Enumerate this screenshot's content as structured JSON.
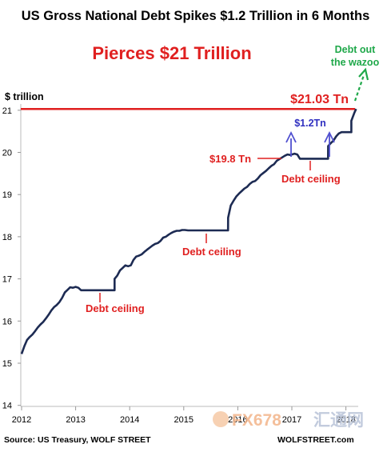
{
  "title": "US Gross National Debt Spikes $1.2 Trillion in 6 Months",
  "subtitle": "Pierces $21 Trillion",
  "source": "Source: US Treasury, WOLF STREET",
  "site": "WOLFSTREET.com",
  "watermark": {
    "logo_text": "FX678",
    "cn_text": "汇通网"
  },
  "colors": {
    "line": "#1d2b53",
    "reference_line": "#e02020",
    "annotation_red": "#e02020",
    "annotation_blue": "#3030c0",
    "annotation_green": "#1fa84a",
    "watermark": "#f3b58a"
  },
  "annotations": {
    "peak_value": "$21.03 Tn",
    "spike": "$1.2Tn",
    "pre_spike_value": "$19.8 Tn",
    "debt_ceiling": "Debt ceiling",
    "wazoo_line1": "Debt out",
    "wazoo_line2": "the wazoo"
  },
  "chart_data": {
    "type": "line",
    "title": "US Gross National Debt Spikes $1.2 Trillion in 6 Months",
    "subtitle": "Pierces $21 Trillion",
    "ylabel": "$ trillion",
    "xlabel": "",
    "xlim": [
      2012.0,
      2018.2
    ],
    "ylim": [
      14,
      21.2
    ],
    "x_ticks": [
      "2012",
      "2013",
      "2014",
      "2015",
      "2016",
      "2017",
      "2018"
    ],
    "y_ticks": [
      "14",
      "15",
      "16",
      "17",
      "18",
      "19",
      "20",
      "21"
    ],
    "grid": false,
    "reference_line": {
      "y": 21.03,
      "label": "$21.03 Tn"
    },
    "series": [
      {
        "x": [
          2012.0,
          2012.05,
          2012.1,
          2012.15,
          2012.2,
          2012.25,
          2012.3,
          2012.35,
          2012.4,
          2012.45,
          2012.5,
          2012.55,
          2012.6,
          2012.65,
          2012.7,
          2012.75,
          2012.8,
          2012.85,
          2012.9,
          2012.95,
          2013.0,
          2013.05,
          2013.1,
          2013.15,
          2013.2,
          2013.25,
          2013.3,
          2013.35,
          2013.4,
          2013.72,
          2013.721,
          2013.77,
          2013.82,
          2013.87,
          2013.92,
          2013.97,
          2014.02,
          2014.07,
          2014.12,
          2014.17,
          2014.22,
          2014.27,
          2014.32,
          2014.37,
          2014.42,
          2014.47,
          2014.52,
          2014.57,
          2014.62,
          2014.67,
          2014.72,
          2014.77,
          2014.82,
          2014.87,
          2014.92,
          2014.97,
          2015.02,
          2015.08,
          2015.13,
          2015.18,
          2015.23,
          2015.28,
          2015.33,
          2015.38,
          2015.42,
          2015.82,
          2015.821,
          2015.87,
          2015.92,
          2015.97,
          2016.02,
          2016.07,
          2016.12,
          2016.17,
          2016.22,
          2016.27,
          2016.32,
          2016.37,
          2016.42,
          2016.47,
          2016.52,
          2016.57,
          2016.62,
          2016.67,
          2016.72,
          2016.77,
          2016.82,
          2016.87,
          2016.92,
          2016.97,
          2017.0,
          2017.05,
          2017.1,
          2017.15,
          2017.2,
          2017.67,
          2017.671,
          2017.72,
          2017.77,
          2017.82,
          2017.87,
          2017.92,
          2017.97,
          2018.0,
          2018.05,
          2018.1,
          2018.101,
          2018.13,
          2018.16,
          2018.19
        ],
        "values": [
          15.22,
          15.4,
          15.55,
          15.62,
          15.68,
          15.76,
          15.85,
          15.92,
          15.98,
          16.06,
          16.15,
          16.25,
          16.33,
          16.38,
          16.45,
          16.55,
          16.68,
          16.74,
          16.8,
          16.79,
          16.81,
          16.79,
          16.73,
          16.73,
          16.73,
          16.73,
          16.73,
          16.73,
          16.73,
          16.73,
          17.0,
          17.08,
          17.2,
          17.26,
          17.32,
          17.3,
          17.32,
          17.45,
          17.53,
          17.55,
          17.58,
          17.64,
          17.69,
          17.74,
          17.79,
          17.83,
          17.85,
          17.9,
          17.98,
          18.0,
          18.05,
          18.09,
          18.12,
          18.14,
          18.14,
          18.16,
          18.16,
          18.15,
          18.15,
          18.15,
          18.15,
          18.15,
          18.15,
          18.15,
          18.15,
          18.15,
          18.45,
          18.74,
          18.85,
          18.95,
          19.02,
          19.08,
          19.14,
          19.18,
          19.25,
          19.3,
          19.32,
          19.38,
          19.46,
          19.51,
          19.56,
          19.62,
          19.68,
          19.72,
          19.8,
          19.84,
          19.88,
          19.92,
          19.95,
          19.94,
          19.95,
          19.97,
          19.95,
          19.85,
          19.85,
          19.85,
          20.15,
          20.22,
          20.28,
          20.38,
          20.45,
          20.48,
          20.48,
          20.48,
          20.48,
          20.48,
          20.75,
          20.85,
          20.95,
          21.03
        ]
      }
    ]
  }
}
